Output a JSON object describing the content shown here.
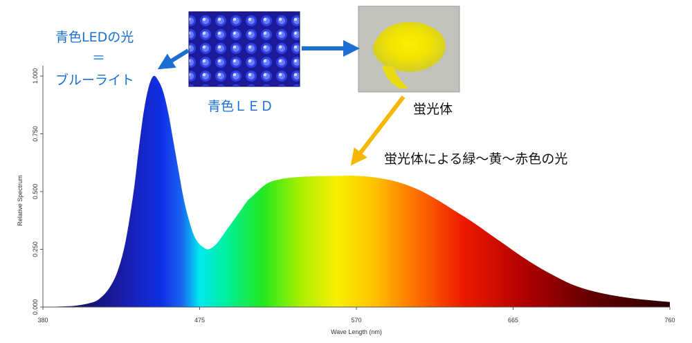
{
  "chart_data": {
    "type": "area",
    "xlabel": "Wave Length (nm)",
    "ylabel": "Relative Spectrum",
    "xlim": [
      380,
      760
    ],
    "ylim": [
      0,
      1
    ],
    "x_ticks": [
      "380",
      "475",
      "570",
      "665",
      "760"
    ],
    "y_ticks": [
      "0.000",
      "0.250",
      "0.500",
      "0.750",
      "1.000"
    ],
    "grid": false,
    "series": [
      {
        "x": [
          380,
          390,
          400,
          410,
          415,
          420,
          425,
          430,
          435,
          438,
          441,
          444,
          447,
          450,
          453,
          456,
          459,
          462,
          465,
          468,
          471,
          474,
          477,
          480,
          483,
          486,
          489,
          492,
          495,
          498,
          501,
          504,
          507,
          510,
          513,
          516,
          519,
          522,
          525,
          530,
          540,
          550,
          560,
          570,
          580,
          590,
          600,
          610,
          620,
          630,
          640,
          650,
          660,
          670,
          680,
          690,
          700,
          710,
          720,
          730,
          740,
          750,
          760
        ],
        "values": [
          0.0,
          0.002,
          0.006,
          0.02,
          0.04,
          0.08,
          0.15,
          0.28,
          0.5,
          0.68,
          0.84,
          0.95,
          1.0,
          0.98,
          0.93,
          0.84,
          0.72,
          0.6,
          0.48,
          0.39,
          0.32,
          0.28,
          0.26,
          0.25,
          0.26,
          0.28,
          0.31,
          0.34,
          0.37,
          0.4,
          0.43,
          0.46,
          0.48,
          0.5,
          0.52,
          0.535,
          0.545,
          0.55,
          0.555,
          0.56,
          0.565,
          0.567,
          0.568,
          0.568,
          0.562,
          0.55,
          0.53,
          0.5,
          0.46,
          0.415,
          0.37,
          0.32,
          0.27,
          0.22,
          0.175,
          0.135,
          0.1,
          0.075,
          0.058,
          0.045,
          0.035,
          0.028,
          0.022
        ]
      }
    ]
  },
  "annotations": {
    "blue_light_line1": "青色LEDの光",
    "blue_light_line2": "＝",
    "blue_light_line3": "ブルーライト",
    "blue_led": "青色ＬＥＤ",
    "phosphor": "蛍光体",
    "phosphor_light": "蛍光体による緑～黄～赤色の光"
  },
  "colors": {
    "annotation_blue": "#1a6fd0",
    "arrow_blue": "#1a6fd0",
    "arrow_orange": "#f5b800",
    "axis": "#555555"
  },
  "images": {
    "blue_led_photo": "blue-led-array-photo",
    "phosphor_photo": "yellow-phosphor-powder-photo"
  }
}
